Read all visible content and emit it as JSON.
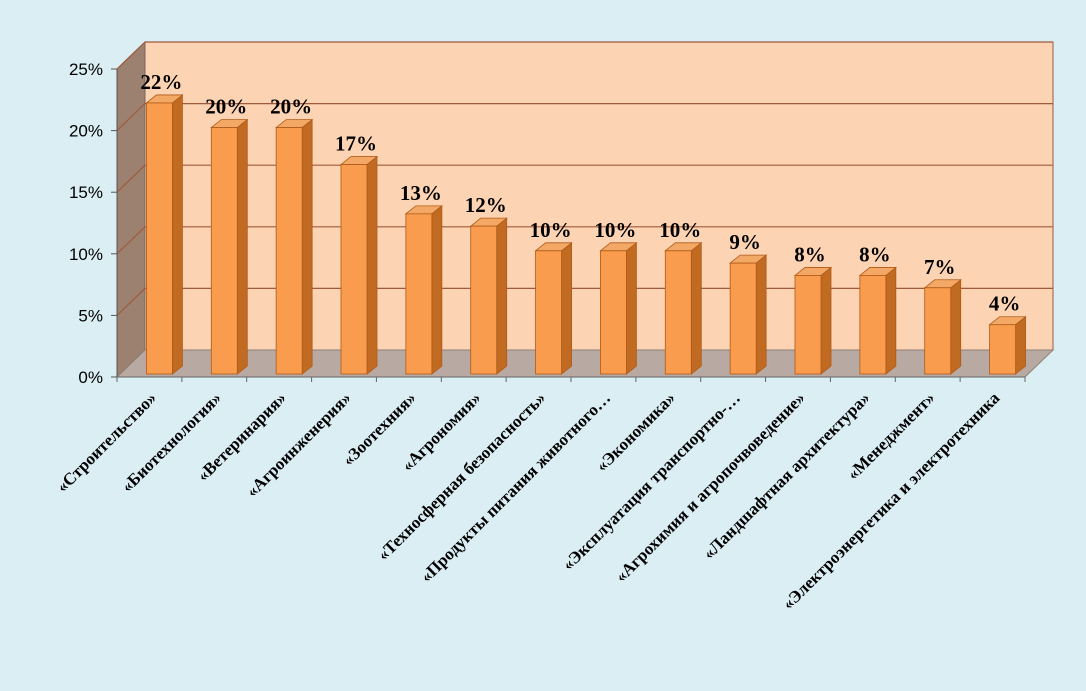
{
  "chart_data": {
    "type": "bar",
    "title": "",
    "xlabel": "",
    "ylabel": "",
    "categories": [
      "«Строительство»",
      "«Биотехнология»",
      "«Ветеринария»",
      "«Агроинженерия»",
      "«Зоотехния»",
      "«Агрономия»",
      "«Техносферная безопасность»",
      "«Продукты питания животного…",
      "«Экономика»",
      "«Эксплуатация транспортно-…",
      "«Агрохимия и агропочвоведение»",
      "«Ландшафтная архитектура»",
      "«Менеджмент»",
      "«Электроэнергетика и электротехника"
    ],
    "values": [
      22,
      20,
      20,
      17,
      13,
      12,
      10,
      10,
      10,
      9,
      8,
      8,
      7,
      4
    ],
    "data_labels": [
      "22%",
      "20%",
      "20%",
      "17%",
      "13%",
      "12%",
      "10%",
      "10%",
      "10%",
      "9%",
      "8%",
      "8%",
      "7%",
      "4%"
    ],
    "y_ticks": [
      "0%",
      "5%",
      "10%",
      "15%",
      "20%",
      "25%"
    ],
    "y_tick_values": [
      0,
      5,
      10,
      15,
      20,
      25
    ],
    "ylim": [
      0,
      25
    ],
    "grid": true,
    "legend": "none",
    "style": "3d-column",
    "colors": {
      "background": "#dbeef4",
      "plot_back_wall": "#fcd3b3",
      "side_wall": "#9c8070",
      "floor": "#b8aaa2",
      "gridline": "#a05a3c",
      "bar_front": "#f99c4d",
      "bar_side": "#c06a22",
      "bar_top": "#f4a865",
      "bar_edge": "#b05a18"
    }
  }
}
